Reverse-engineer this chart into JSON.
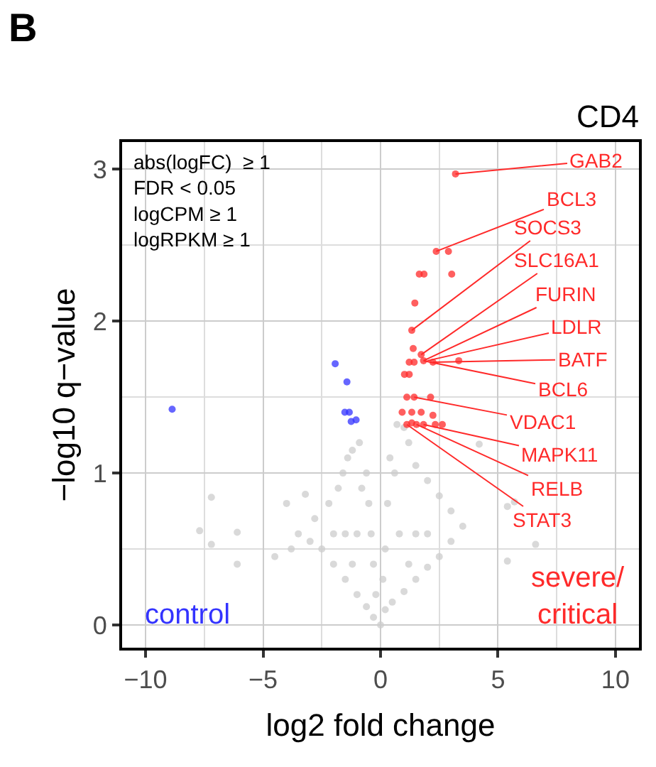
{
  "chart_data": {
    "type": "scatter",
    "title": "CD4",
    "xlabel": "log2 fold change",
    "ylabel": "−log10 q−value",
    "xlim": [
      -11,
      11
    ],
    "ylim": [
      -0.15,
      3.18
    ],
    "xticks": [
      {
        "value": -10,
        "label": "−10"
      },
      {
        "value": -5,
        "label": "−5"
      },
      0,
      5,
      10
    ],
    "yticks": [
      0,
      1,
      2,
      3
    ],
    "grid": true,
    "marker": "circle",
    "series": [
      {
        "color": "#cccccc",
        "x": [
          -0.3,
          -0.6,
          -1.0,
          -1.5,
          -2.0,
          -2.5,
          -3.0,
          -3.5,
          -2.8,
          -2.2,
          -1.8,
          -1.6,
          -1.4,
          -1.2,
          -0.9,
          -0.6,
          -0.5,
          -0.4,
          -0.3,
          -0.2,
          -1.0,
          -1.5,
          -0.8,
          -1.2,
          -2.0,
          0.2,
          0.5,
          1.0,
          1.5,
          2.0,
          2.5,
          3.0,
          3.5,
          3.0,
          2.5,
          2.0,
          1.5,
          1.2,
          1.0,
          0.7,
          0.4,
          0.3,
          0.2,
          0.1,
          0.8,
          1.5,
          0.6,
          1.2,
          2.0,
          -7.7,
          -7.2,
          -6.1,
          -6.1,
          -7.2,
          -4.0,
          -3.2,
          -4.5,
          -3.8,
          5.7,
          5.4,
          6.6,
          5.4,
          4.2,
          0.0
        ],
        "values": [
          0.05,
          0.12,
          0.2,
          0.3,
          0.4,
          0.5,
          0.55,
          0.6,
          0.7,
          0.8,
          0.9,
          1.0,
          1.1,
          1.15,
          1.2,
          1.0,
          0.8,
          0.6,
          0.4,
          0.2,
          0.6,
          0.6,
          0.9,
          0.4,
          0.6,
          0.1,
          0.15,
          0.22,
          0.3,
          0.38,
          0.45,
          0.55,
          0.65,
          0.75,
          0.85,
          0.95,
          1.05,
          1.2,
          1.3,
          1.32,
          1.1,
          0.8,
          0.5,
          0.3,
          0.6,
          0.6,
          1.0,
          0.4,
          0.6,
          0.62,
          0.53,
          0.4,
          0.61,
          0.84,
          0.8,
          0.86,
          0.45,
          0.5,
          0.81,
          0.78,
          0.53,
          0.42,
          1.19,
          0.0
        ]
      },
      {
        "color": "#ff2a2a",
        "x": [
          3.19,
          2.37,
          2.89,
          1.65,
          1.85,
          3.03,
          1.46,
          1.33,
          1.73,
          1.39,
          1.22,
          1.43,
          1.83,
          2.23,
          3.33,
          1.02,
          1.22,
          1.12,
          1.43,
          2.13,
          0.92,
          1.33,
          1.73,
          2.23,
          1.12,
          1.33,
          1.53,
          1.83,
          2.33,
          2.63
        ],
        "values": [
          2.97,
          2.46,
          2.46,
          2.31,
          2.31,
          2.31,
          2.12,
          1.94,
          1.78,
          1.82,
          1.73,
          1.73,
          1.74,
          1.73,
          1.74,
          1.65,
          1.65,
          1.5,
          1.5,
          1.5,
          1.4,
          1.4,
          1.4,
          1.38,
          1.32,
          1.33,
          1.32,
          1.32,
          1.32,
          1.32
        ]
      },
      {
        "color": "#3333ff",
        "x": [
          -1.93,
          -1.43,
          -8.87,
          -1.52,
          -1.33,
          -1.25,
          -1.04
        ],
        "values": [
          1.72,
          1.6,
          1.42,
          1.4,
          1.4,
          1.34,
          1.35
        ]
      }
    ],
    "annotations": [
      "B",
      "abs(logFC)  ≥ 1\nFDR < 0.05\nlogCPM ≥ 1\nlogRPKM ≥ 1",
      "control",
      "severe/\ncritical",
      {
        "text": "GAB2",
        "x": 3.19,
        "y": 2.97
      },
      {
        "text": "BCL3",
        "x": 2.37,
        "y": 2.46
      },
      {
        "text": "SOCS3",
        "x": 1.33,
        "y": 1.94
      },
      {
        "text": "SLC16A1",
        "x": 1.73,
        "y": 1.78
      },
      {
        "text": "FURIN",
        "x": 1.83,
        "y": 1.74
      },
      {
        "text": "LDLR",
        "x": 2.0,
        "y": 1.74
      },
      {
        "text": "BATF",
        "x": 2.23,
        "y": 1.73
      },
      {
        "text": "BCL6",
        "x": 1.83,
        "y": 1.74
      },
      {
        "text": "VDAC1",
        "x": 1.43,
        "y": 1.5
      },
      {
        "text": "MAPK11",
        "x": 1.83,
        "y": 1.32
      },
      {
        "text": "RELB",
        "x": 1.53,
        "y": 1.32
      },
      {
        "text": "STAT3",
        "x": 1.12,
        "y": 1.32
      }
    ]
  }
}
